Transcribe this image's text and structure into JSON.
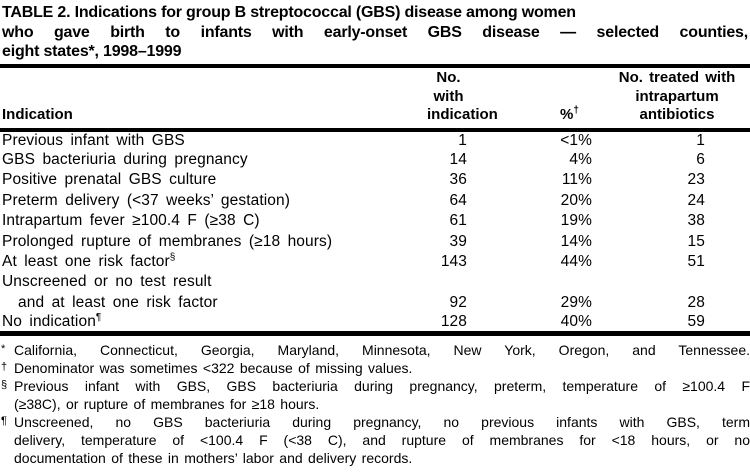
{
  "page": {
    "background_color": "#ffffff",
    "text_color": "#000000",
    "rule_color": "#000000"
  },
  "title": {
    "line1": "TABLE 2. Indications for group B streptococcal (GBS) disease among women",
    "line2": "who gave birth to infants with early-onset GBS disease — selected counties,",
    "line3": "eight states*, 1998–1999"
  },
  "table": {
    "header": {
      "col1": "Indication",
      "col2_line1": "No. with",
      "col2_line2": "indication",
      "col3": "%",
      "col3_marker": "†",
      "col4_line1": "No. treated with",
      "col4_line2": "intrapartum",
      "col4_line3": "antibiotics"
    },
    "rows": [
      {
        "indication": "Previous infant with GBS",
        "marker": "",
        "no_with_indication": "1",
        "percent": "<1%",
        "no_treated": "1"
      },
      {
        "indication": "GBS bacteriuria during pregnancy",
        "marker": "",
        "no_with_indication": "14",
        "percent": "4%",
        "no_treated": "6"
      },
      {
        "indication": "Positive prenatal GBS culture",
        "marker": "",
        "no_with_indication": "36",
        "percent": "11%",
        "no_treated": "23"
      },
      {
        "indication": "Preterm delivery (<37 weeks’ gestation)",
        "marker": "",
        "no_with_indication": "64",
        "percent": "20%",
        "no_treated": "24"
      },
      {
        "indication": "Intrapartum fever ≥100.4 F (≥38 C)",
        "marker": "",
        "no_with_indication": "61",
        "percent": "19%",
        "no_treated": "38"
      },
      {
        "indication": "Prolonged rupture of membranes (≥18 hours)",
        "marker": "",
        "no_with_indication": "39",
        "percent": "14%",
        "no_treated": "15"
      },
      {
        "indication": "At least one risk factor",
        "marker": "§",
        "no_with_indication": "143",
        "percent": "44%",
        "no_treated": "51"
      },
      {
        "indication": "Unscreened or no test result",
        "marker": "",
        "no_with_indication": "",
        "percent": "",
        "no_treated": ""
      },
      {
        "indication": "and at least one risk factor",
        "marker": "",
        "no_with_indication": "92",
        "percent": "29%",
        "no_treated": "28"
      },
      {
        "indication": "No indication",
        "marker": "¶",
        "no_with_indication": "128",
        "percent": "40%",
        "no_treated": "59"
      }
    ]
  },
  "footnotes": [
    {
      "marker": "*",
      "line1": "California, Connecticut, Georgia, Maryland, Minnesota, New York, Oregon, and Tennessee."
    },
    {
      "marker": "†",
      "line1": "Denominator was sometimes <322 because of missing values."
    },
    {
      "marker": "§",
      "line1": "Previous infant with GBS, GBS bacteriuria during pregnancy, preterm, temperature of ≥100.4 F",
      "line2": "(≥38C), or rupture of membranes for ≥18 hours."
    },
    {
      "marker": "¶",
      "line1": "Unscreened, no GBS bacteriuria during pregnancy, no previous infants with GBS, term",
      "line2": "delivery, temperature of <100.4 F (<38 C), and rupture of membranes for <18 hours, or no",
      "line3": "documentation of these in mothers’ labor and delivery records."
    }
  ]
}
